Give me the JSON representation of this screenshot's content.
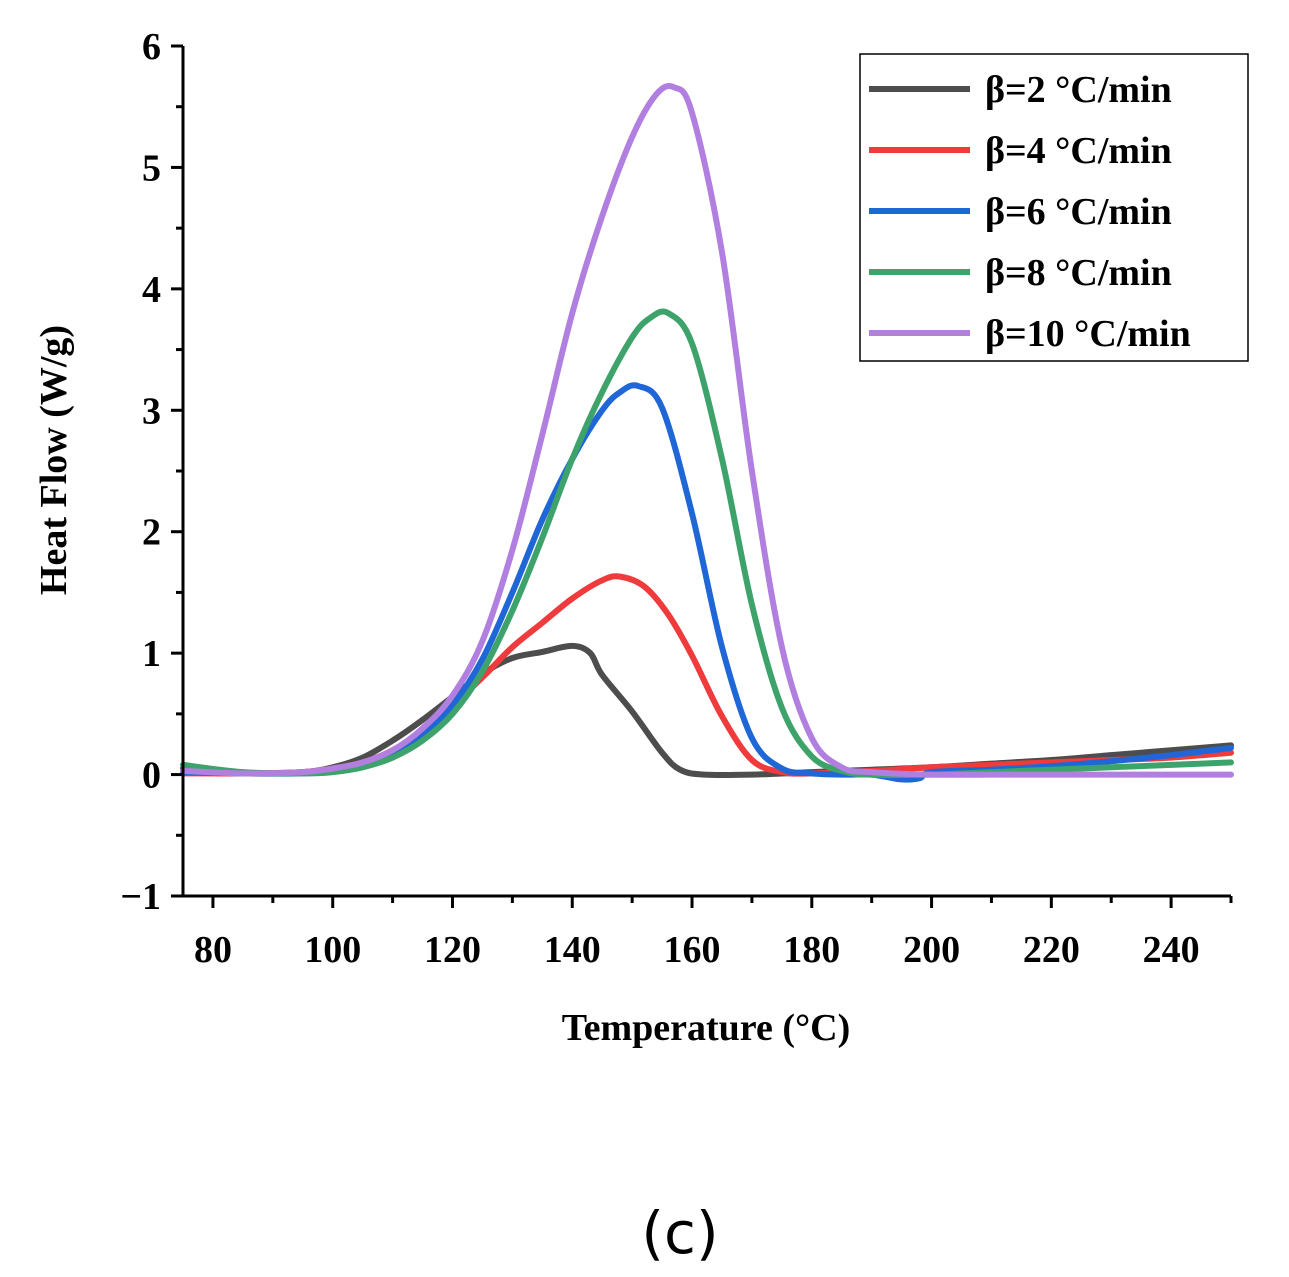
{
  "panel_label": "(c)",
  "chart_data": {
    "type": "line",
    "title": "",
    "xlabel": "Temperature (°C)",
    "ylabel": "Heat Flow (W/g)",
    "xlim": [
      75,
      250
    ],
    "ylim": [
      -1,
      6
    ],
    "x_ticks": [
      80,
      100,
      120,
      140,
      160,
      180,
      200,
      220,
      240
    ],
    "x_tick_labels": [
      "80",
      "100",
      "120",
      "140",
      "160",
      "180",
      "200",
      "220",
      "240"
    ],
    "y_ticks": [
      -1,
      0,
      1,
      2,
      3,
      4,
      5,
      6
    ],
    "y_tick_labels": [
      "−1",
      "0",
      "1",
      "2",
      "3",
      "4",
      "5",
      "6"
    ],
    "grid": false,
    "legend_position": "top-right",
    "series": [
      {
        "name": "β=2 °C/min",
        "color": "#4d4d4d",
        "x": [
          75,
          85,
          95,
          100,
          105,
          110,
          115,
          120,
          125,
          130,
          135,
          140,
          143,
          145,
          150,
          155,
          158,
          162,
          170,
          180,
          190,
          200,
          210,
          220,
          230,
          240,
          250
        ],
        "y": [
          0.05,
          0.01,
          0.02,
          0.06,
          0.14,
          0.28,
          0.45,
          0.64,
          0.83,
          0.96,
          1.01,
          1.06,
          1.0,
          0.82,
          0.52,
          0.18,
          0.04,
          0.0,
          0.0,
          0.02,
          0.04,
          0.06,
          0.09,
          0.12,
          0.16,
          0.2,
          0.24
        ]
      },
      {
        "name": "β=4 °C/min",
        "color": "#ef3b3b",
        "x": [
          75,
          85,
          95,
          100,
          105,
          110,
          115,
          120,
          125,
          130,
          135,
          140,
          145,
          148,
          152,
          156,
          160,
          165,
          170,
          175,
          180,
          190,
          200,
          210,
          220,
          230,
          240,
          250
        ],
        "y": [
          0.01,
          0.01,
          0.02,
          0.05,
          0.1,
          0.2,
          0.36,
          0.57,
          0.8,
          1.05,
          1.25,
          1.45,
          1.6,
          1.63,
          1.55,
          1.32,
          0.98,
          0.48,
          0.12,
          0.02,
          0.01,
          0.03,
          0.06,
          0.08,
          0.1,
          0.12,
          0.14,
          0.18
        ]
      },
      {
        "name": "β=6 °C/min",
        "color": "#1f67d6",
        "x": [
          75,
          85,
          95,
          100,
          105,
          110,
          115,
          120,
          125,
          130,
          135,
          140,
          145,
          148,
          151,
          155,
          160,
          165,
          170,
          175,
          180,
          185,
          190,
          195,
          198,
          200,
          210,
          220,
          230,
          240,
          250
        ],
        "y": [
          0.02,
          0.01,
          0.01,
          0.03,
          0.08,
          0.17,
          0.33,
          0.57,
          0.95,
          1.5,
          2.1,
          2.6,
          3.0,
          3.15,
          3.2,
          3.02,
          2.15,
          1.05,
          0.3,
          0.05,
          0.01,
          0.0,
          0.0,
          -0.04,
          -0.03,
          0.02,
          0.04,
          0.07,
          0.11,
          0.16,
          0.22
        ]
      },
      {
        "name": "β=8 °C/min",
        "color": "#3ea36b",
        "x": [
          75,
          85,
          95,
          100,
          105,
          110,
          115,
          120,
          125,
          130,
          135,
          140,
          145,
          150,
          153,
          156,
          160,
          165,
          170,
          175,
          180,
          185,
          190,
          200,
          210,
          220,
          230,
          240,
          250
        ],
        "y": [
          0.08,
          0.02,
          0.01,
          0.02,
          0.06,
          0.14,
          0.28,
          0.5,
          0.85,
          1.35,
          1.95,
          2.6,
          3.15,
          3.6,
          3.76,
          3.8,
          3.55,
          2.6,
          1.4,
          0.55,
          0.15,
          0.03,
          0.0,
          0.0,
          0.02,
          0.04,
          0.06,
          0.08,
          0.1
        ]
      },
      {
        "name": "β=10 °C/min",
        "color": "#b07fe0",
        "x": [
          75,
          85,
          95,
          100,
          105,
          110,
          115,
          120,
          125,
          130,
          135,
          140,
          145,
          150,
          154,
          157,
          160,
          165,
          170,
          175,
          180,
          185,
          190,
          200,
          210,
          220,
          230,
          240,
          250
        ],
        "y": [
          0.03,
          0.01,
          0.02,
          0.05,
          0.1,
          0.2,
          0.38,
          0.65,
          1.1,
          1.85,
          2.8,
          3.8,
          4.6,
          5.25,
          5.6,
          5.66,
          5.45,
          4.3,
          2.5,
          1.05,
          0.3,
          0.06,
          0.02,
          0.0,
          0.0,
          0.0,
          0.0,
          0.0,
          0.0
        ]
      }
    ]
  }
}
